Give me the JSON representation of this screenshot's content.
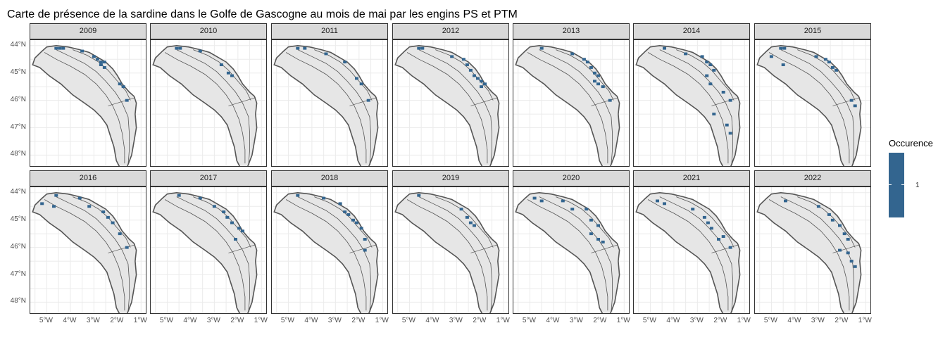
{
  "title": "Carte de présence de la sardine dans le Golfe de Gascogne au mois de mai par les engins PS et PTM",
  "panels": [
    "2009",
    "2010",
    "2011",
    "2012",
    "2013",
    "2014",
    "2015",
    "2016",
    "2017",
    "2018",
    "2019",
    "2020",
    "2021",
    "2022"
  ],
  "y_ticks": [
    "48°N",
    "47°N",
    "46°N",
    "45°N",
    "44°N"
  ],
  "x_ticks": [
    "5°W",
    "4°W",
    "3°W",
    "2°W",
    "1°W"
  ],
  "legend": {
    "title": "Occurence",
    "label": "1",
    "color": "#33658f"
  },
  "colors": {
    "land": "#e6e6e6",
    "outline": "#555555",
    "presence": "#33658f",
    "grid": "#ebebeb"
  },
  "chart_data": {
    "type": "heatmap",
    "title": "Carte de présence de la sardine dans le Golfe de Gascogne au mois de mai par les engins PS et PTM",
    "facet_by": "year",
    "xlim": [
      -5.7,
      -0.8
    ],
    "ylim": [
      43.6,
      48.2
    ],
    "x_ticks": [
      -5,
      -4,
      -3,
      -2,
      -1
    ],
    "y_ticks": [
      44,
      45,
      46,
      47,
      48
    ],
    "cell_size_deg": [
      0.15,
      0.1
    ],
    "legend": {
      "title": "Occurence",
      "values": [
        1
      ]
    },
    "occurrence_cells": {
      "2009": [
        [
          -4.6,
          47.9
        ],
        [
          -4.45,
          47.9
        ],
        [
          -4.3,
          47.9
        ],
        [
          -3.5,
          47.8
        ],
        [
          -3.0,
          47.6
        ],
        [
          -2.85,
          47.5
        ],
        [
          -2.7,
          47.4
        ],
        [
          -2.55,
          47.4
        ],
        [
          -2.7,
          47.3
        ],
        [
          -2.55,
          47.2
        ],
        [
          -1.9,
          46.6
        ],
        [
          -1.75,
          46.5
        ],
        [
          -1.6,
          46.0
        ]
      ],
      "2010": [
        [
          -4.6,
          47.9
        ],
        [
          -4.45,
          47.9
        ],
        [
          -3.6,
          47.8
        ],
        [
          -2.7,
          47.3
        ],
        [
          -2.4,
          47.0
        ],
        [
          -2.25,
          46.9
        ]
      ],
      "2011": [
        [
          -4.6,
          47.9
        ],
        [
          -4.3,
          47.9
        ],
        [
          -3.4,
          47.7
        ],
        [
          -2.6,
          47.4
        ],
        [
          -2.1,
          46.8
        ],
        [
          -1.9,
          46.6
        ],
        [
          -1.6,
          46.0
        ]
      ],
      "2012": [
        [
          -4.6,
          47.9
        ],
        [
          -4.45,
          47.9
        ],
        [
          -3.2,
          47.6
        ],
        [
          -2.7,
          47.5
        ],
        [
          -2.55,
          47.3
        ],
        [
          -2.4,
          47.1
        ],
        [
          -2.25,
          46.9
        ],
        [
          -2.1,
          46.8
        ],
        [
          -1.95,
          46.7
        ],
        [
          -1.8,
          46.6
        ],
        [
          -1.95,
          46.5
        ]
      ],
      "2013": [
        [
          -4.5,
          47.9
        ],
        [
          -3.2,
          47.7
        ],
        [
          -2.7,
          47.5
        ],
        [
          -2.55,
          47.4
        ],
        [
          -2.4,
          47.2
        ],
        [
          -2.25,
          47.0
        ],
        [
          -2.1,
          46.9
        ],
        [
          -2.25,
          46.7
        ],
        [
          -2.1,
          46.6
        ],
        [
          -1.9,
          46.5
        ],
        [
          -1.6,
          46.0
        ]
      ],
      "2014": [
        [
          -4.4,
          47.9
        ],
        [
          -3.5,
          47.7
        ],
        [
          -2.8,
          47.6
        ],
        [
          -2.6,
          47.4
        ],
        [
          -2.45,
          47.3
        ],
        [
          -2.3,
          47.1
        ],
        [
          -2.6,
          46.9
        ],
        [
          -2.45,
          46.6
        ],
        [
          -1.9,
          46.3
        ],
        [
          -1.6,
          46.0
        ],
        [
          -2.3,
          45.5
        ],
        [
          -1.75,
          45.1
        ],
        [
          -1.6,
          44.8
        ]
      ],
      "2015": [
        [
          -4.6,
          47.9
        ],
        [
          -4.45,
          47.9
        ],
        [
          -5.0,
          47.6
        ],
        [
          -4.5,
          47.3
        ],
        [
          -3.1,
          47.6
        ],
        [
          -2.7,
          47.5
        ],
        [
          -2.55,
          47.4
        ],
        [
          -2.4,
          47.2
        ],
        [
          -2.25,
          47.1
        ],
        [
          -1.6,
          46.0
        ],
        [
          -1.45,
          45.8
        ]
      ],
      "2016": [
        [
          -4.6,
          47.9
        ],
        [
          -3.6,
          47.8
        ],
        [
          -5.2,
          47.6
        ],
        [
          -4.7,
          47.5
        ],
        [
          -3.2,
          47.5
        ],
        [
          -2.6,
          47.3
        ],
        [
          -2.4,
          47.1
        ],
        [
          -2.2,
          46.9
        ],
        [
          -1.9,
          46.5
        ],
        [
          -1.6,
          46.0
        ]
      ],
      "2017": [
        [
          -4.5,
          47.9
        ],
        [
          -3.6,
          47.8
        ],
        [
          -3.0,
          47.5
        ],
        [
          -2.6,
          47.3
        ],
        [
          -2.45,
          47.1
        ],
        [
          -2.25,
          46.9
        ],
        [
          -1.95,
          46.7
        ],
        [
          -1.8,
          46.6
        ],
        [
          -2.1,
          46.3
        ]
      ],
      "2018": [
        [
          -4.6,
          47.9
        ],
        [
          -3.5,
          47.8
        ],
        [
          -2.8,
          47.6
        ],
        [
          -2.6,
          47.3
        ],
        [
          -2.45,
          47.2
        ],
        [
          -2.25,
          47.0
        ],
        [
          -2.1,
          46.9
        ],
        [
          -1.9,
          46.7
        ],
        [
          -1.75,
          46.3
        ],
        [
          -1.75,
          45.9
        ]
      ],
      "2019": [
        [
          -4.6,
          47.9
        ],
        [
          -2.8,
          47.4
        ],
        [
          -2.55,
          47.1
        ],
        [
          -2.4,
          46.9
        ],
        [
          -2.25,
          46.8
        ]
      ],
      "2020": [
        [
          -4.8,
          47.8
        ],
        [
          -4.5,
          47.7
        ],
        [
          -3.6,
          47.7
        ],
        [
          -3.2,
          47.4
        ],
        [
          -2.6,
          47.4
        ],
        [
          -2.4,
          47.0
        ],
        [
          -2.1,
          46.8
        ],
        [
          -2.4,
          46.5
        ],
        [
          -2.1,
          46.3
        ],
        [
          -1.9,
          46.2
        ]
      ],
      "2021": [
        [
          -4.7,
          47.7
        ],
        [
          -4.4,
          47.6
        ],
        [
          -3.2,
          47.4
        ],
        [
          -2.7,
          47.1
        ],
        [
          -2.55,
          46.9
        ],
        [
          -2.4,
          46.7
        ],
        [
          -2.1,
          46.3
        ],
        [
          -1.9,
          46.4
        ],
        [
          -1.6,
          46.0
        ]
      ],
      "2022": [
        [
          -4.4,
          47.7
        ],
        [
          -3.0,
          47.5
        ],
        [
          -2.55,
          47.2
        ],
        [
          -2.4,
          47.0
        ],
        [
          -2.1,
          46.8
        ],
        [
          -1.9,
          46.5
        ],
        [
          -1.75,
          46.3
        ],
        [
          -2.1,
          45.9
        ],
        [
          -1.75,
          45.8
        ],
        [
          -1.6,
          45.5
        ],
        [
          -1.45,
          45.3
        ]
      ]
    }
  }
}
